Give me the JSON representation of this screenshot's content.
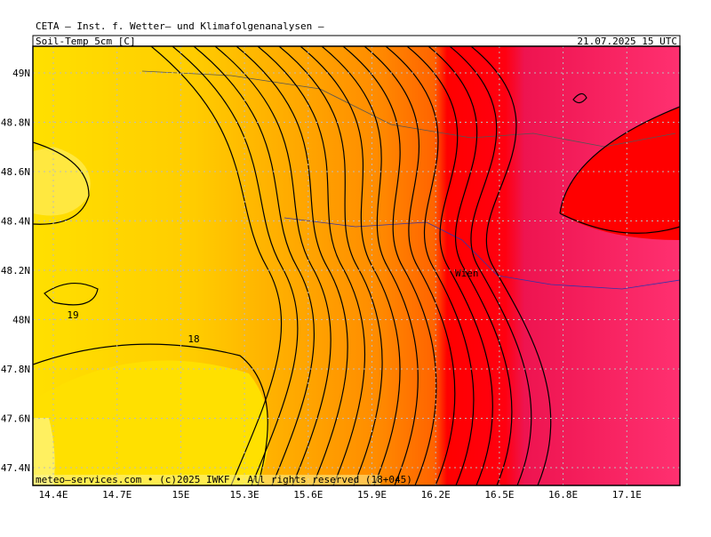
{
  "header": {
    "title": "CETA – Inst. f. Wetter– und Klimafolgenanalysen –",
    "parameter": "Soil-Temp_5cm [C]",
    "valid_time": "21.07.2025 15 UTC"
  },
  "map": {
    "lat_labels": [
      "49N",
      "48.8N",
      "48.6N",
      "48.4N",
      "48.2N",
      "48N",
      "47.8N",
      "47.6N",
      "47.4N"
    ],
    "lon_labels": [
      "14.4E",
      "14.7E",
      "15E",
      "15.3E",
      "15.6E",
      "15.9E",
      "16.2E",
      "16.5E",
      "16.8E",
      "17.1E"
    ],
    "contour_labels": [
      "19",
      "18"
    ],
    "city": "Wien",
    "footer": "meteo–services.com • (c)2025 IWKF • All rights reserved (18+045)"
  }
}
